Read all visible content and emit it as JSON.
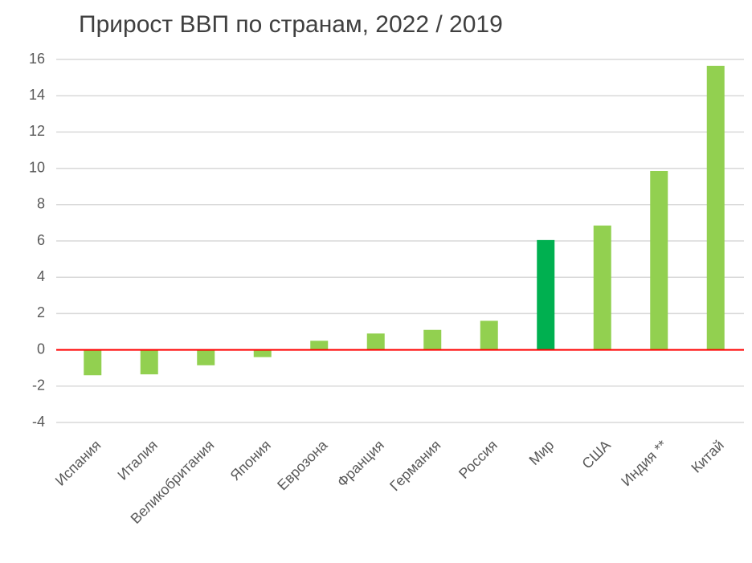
{
  "chart_data": {
    "type": "bar",
    "title": "Прирост ВВП по странам, 2022 / 2019",
    "categories": [
      "Испания",
      "Италия",
      "Великобритания",
      "Япония",
      "Еврозона",
      "Франция",
      "Германия",
      "Россия",
      "Мир",
      "США",
      "Индия **",
      "Китай"
    ],
    "values": [
      -1.4,
      -1.35,
      -0.85,
      -0.4,
      0.5,
      0.9,
      1.1,
      1.6,
      6.05,
      6.85,
      9.85,
      15.65
    ],
    "colors": [
      "#92d050",
      "#92d050",
      "#92d050",
      "#92d050",
      "#92d050",
      "#92d050",
      "#92d050",
      "#92d050",
      "#00b050",
      "#92d050",
      "#92d050",
      "#92d050"
    ],
    "ylim": [
      -4,
      16
    ],
    "yticks": [
      -4,
      -2,
      0,
      2,
      4,
      6,
      8,
      10,
      12,
      14,
      16
    ],
    "grid": true,
    "zero_line_color": "#ff0000"
  }
}
